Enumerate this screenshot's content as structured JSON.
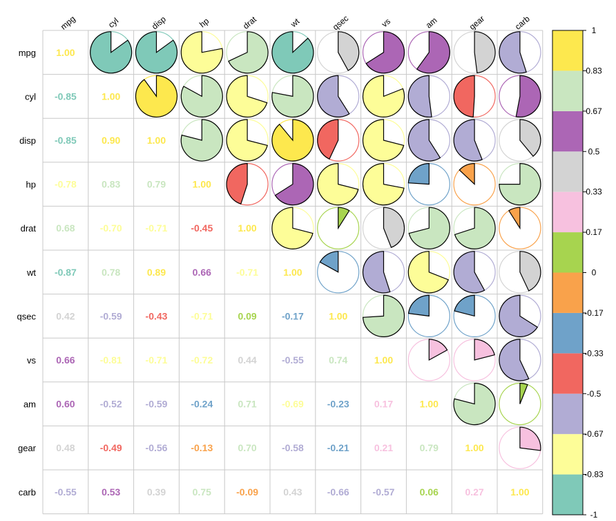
{
  "chart_data": {
    "type": "heatmap",
    "subtype": "correlation-matrix-pie-upper-number-lower",
    "variables": [
      "mpg",
      "cyl",
      "disp",
      "hp",
      "drat",
      "wt",
      "qsec",
      "vs",
      "am",
      "gear",
      "carb"
    ],
    "matrix": [
      [
        1.0,
        -0.85,
        -0.85,
        -0.78,
        0.68,
        -0.87,
        0.42,
        0.66,
        0.6,
        0.48,
        -0.55
      ],
      [
        -0.85,
        1.0,
        0.9,
        0.83,
        -0.7,
        0.78,
        -0.59,
        -0.81,
        -0.52,
        -0.49,
        0.53
      ],
      [
        -0.85,
        0.9,
        1.0,
        0.79,
        -0.71,
        0.89,
        -0.43,
        -0.71,
        -0.59,
        -0.56,
        0.39
      ],
      [
        -0.78,
        0.83,
        0.79,
        1.0,
        -0.45,
        0.66,
        -0.71,
        -0.72,
        -0.24,
        -0.13,
        0.75
      ],
      [
        0.68,
        -0.7,
        -0.71,
        -0.45,
        1.0,
        -0.71,
        0.09,
        0.44,
        0.71,
        0.7,
        -0.09
      ],
      [
        -0.87,
        0.78,
        0.89,
        0.66,
        -0.71,
        1.0,
        -0.17,
        -0.55,
        -0.69,
        -0.58,
        0.43
      ],
      [
        0.42,
        -0.59,
        -0.43,
        -0.71,
        0.09,
        -0.17,
        1.0,
        0.74,
        -0.23,
        -0.21,
        -0.66
      ],
      [
        0.66,
        -0.81,
        -0.71,
        -0.72,
        0.44,
        -0.55,
        0.74,
        1.0,
        0.17,
        0.21,
        -0.57
      ],
      [
        0.6,
        -0.52,
        -0.59,
        -0.24,
        0.71,
        -0.69,
        -0.23,
        0.17,
        1.0,
        0.79,
        0.06
      ],
      [
        0.48,
        -0.49,
        -0.56,
        -0.13,
        0.7,
        -0.58,
        -0.21,
        0.21,
        0.79,
        1.0,
        0.27
      ],
      [
        -0.55,
        0.53,
        0.39,
        0.75,
        -0.09,
        0.43,
        -0.66,
        -0.57,
        0.06,
        0.27,
        1.0
      ]
    ],
    "upper_display": "pie",
    "lower_display": "number",
    "diagonal_display": "number",
    "color_scale": {
      "range": [
        -1,
        1
      ],
      "palette": [
        "#7fc9b8",
        "#fdfd98",
        "#b1acd4",
        "#f16760",
        "#6fa2c9",
        "#f9a24b",
        "#a7d44f",
        "#f7c1df",
        "#d3d3d3",
        "#ac66b5",
        "#c9e6c0",
        "#fde84e"
      ],
      "tick_labels": [
        "1",
        "0.83",
        "0.67",
        "0.5",
        "0.33",
        "0.17",
        "0",
        "-0.17",
        "-0.33",
        "-0.5",
        "-0.67",
        "-0.83",
        "-1"
      ]
    },
    "grid": true,
    "legend_position": "right"
  }
}
